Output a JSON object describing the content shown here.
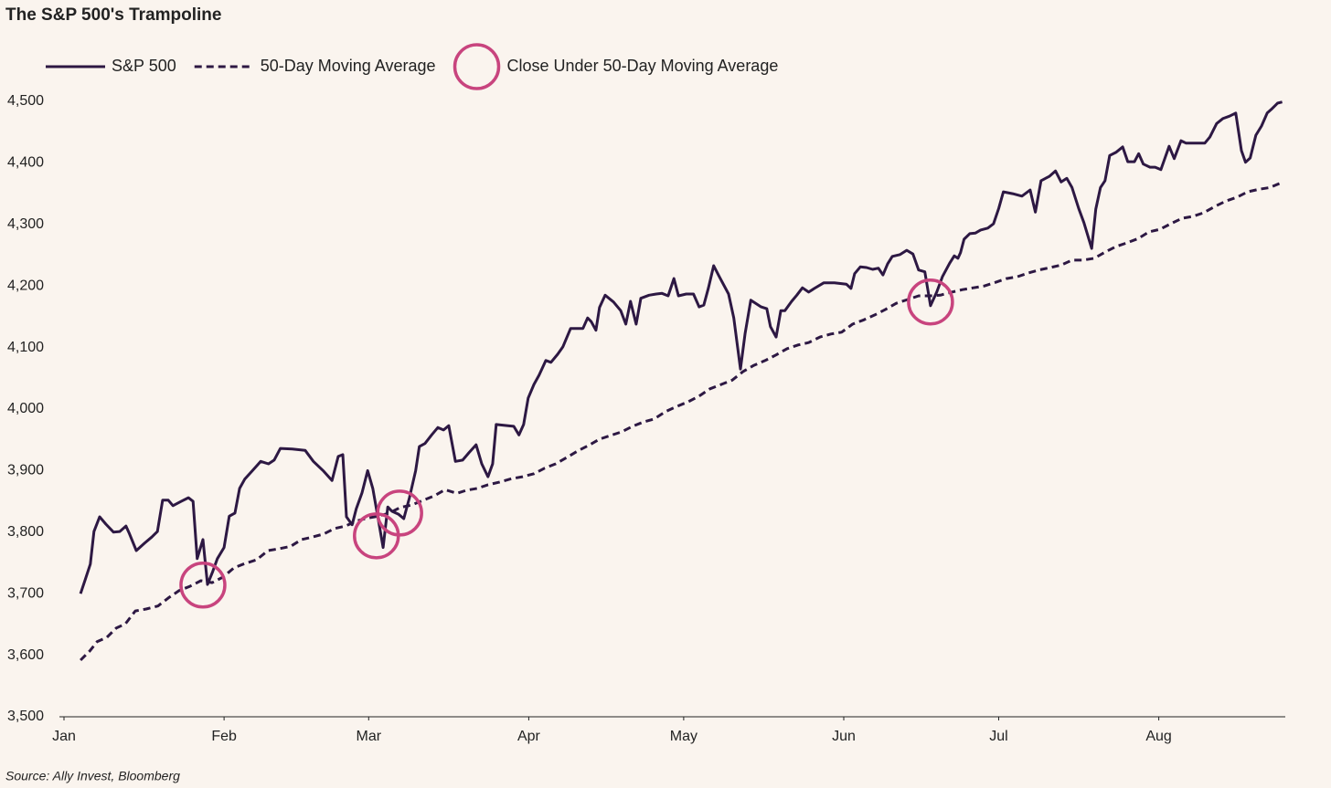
{
  "chart_data": {
    "type": "line",
    "title": "The S&P 500's Trampoline",
    "source": "Source: Ally Invest, Bloomberg",
    "xlim": [
      0,
      236.5
    ],
    "xticks": [
      {
        "value": 0,
        "label": "Jan"
      },
      {
        "value": 31,
        "label": "Feb"
      },
      {
        "value": 59,
        "label": "Mar"
      },
      {
        "value": 90,
        "label": "Apr"
      },
      {
        "value": 120,
        "label": "May"
      },
      {
        "value": 151,
        "label": "Jun"
      },
      {
        "value": 181,
        "label": "Jul"
      },
      {
        "value": 212,
        "label": "Aug"
      }
    ],
    "ylim": [
      3500,
      4500
    ],
    "yticks": [
      {
        "value": 3500,
        "label": "3,500"
      },
      {
        "value": 3600,
        "label": "3,600"
      },
      {
        "value": 3700,
        "label": "3,700"
      },
      {
        "value": 3800,
        "label": "3,800"
      },
      {
        "value": 3900,
        "label": "3,900"
      },
      {
        "value": 4000,
        "label": "4,000"
      },
      {
        "value": 4100,
        "label": "4,100"
      },
      {
        "value": 4200,
        "label": "4,200"
      },
      {
        "value": 4300,
        "label": "4,300"
      },
      {
        "value": 4400,
        "label": "4,400"
      },
      {
        "value": 4500,
        "label": "4,500"
      }
    ],
    "grid": false,
    "series": [
      {
        "name": "S&P 500",
        "color": "#2d1843",
        "style": "solid",
        "x": [
          3.2,
          4.2,
          5.1,
          5.8,
          6.9,
          8.1,
          9.6,
          10.8,
          12.0,
          12.7,
          14.0,
          15.6,
          17.0,
          18.1,
          19.1,
          20.2,
          21.1,
          22.7,
          24.1,
          25.0,
          25.8,
          26.9,
          27.8,
          28.8,
          29.7,
          31.0,
          32.0,
          33.1,
          34.0,
          35.0,
          36.5,
          38.1,
          39.6,
          40.7,
          41.9,
          44.2,
          46.7,
          48.3,
          50.3,
          51.9,
          53.1,
          54.0,
          54.7,
          55.8,
          56.6,
          57.7,
          58.8,
          59.8,
          60.9,
          61.8,
          62.7,
          63.5,
          64.8,
          65.8,
          66.9,
          68.1,
          68.8,
          69.9,
          71.2,
          72.4,
          73.5,
          74.5,
          75.8,
          77.2,
          78.4,
          79.8,
          80.9,
          82.1,
          83.0,
          83.7,
          86.0,
          87.1,
          88.1,
          89.0,
          89.9,
          91.0,
          92.0,
          93.3,
          94.3,
          95.6,
          96.6,
          98.1,
          99.3,
          100.5,
          101.4,
          102.1,
          103.0,
          103.7,
          104.8,
          106.4,
          107.8,
          108.8,
          109.7,
          110.8,
          111.7,
          113.3,
          114.7,
          115.8,
          117.0,
          118.1,
          119.0,
          120.5,
          121.9,
          123.0,
          123.9,
          124.8,
          125.8,
          126.9,
          128.7,
          129.7,
          131.0,
          131.9,
          133.0,
          135.0,
          136.1,
          136.8,
          137.9,
          138.8,
          139.6,
          140.9,
          141.9,
          143.0,
          144.2,
          145.3,
          147.1,
          149.2,
          151.5,
          152.4,
          153.1,
          154.2,
          155.4,
          156.6,
          157.7,
          158.6,
          159.5,
          160.4,
          161.9,
          163.2,
          164.4,
          165.5,
          166.7,
          167.8,
          169.0,
          170.1,
          171.5,
          172.4,
          173.1,
          173.6,
          174.3,
          175.4,
          176.5,
          177.5,
          178.9,
          180.0,
          181.0,
          181.9,
          183.7,
          185.5,
          187.1,
          188.1,
          189.2,
          190.8,
          192.0,
          193.1,
          194.2,
          195.2,
          196.5,
          197.5,
          199.0,
          199.8,
          200.7,
          201.6,
          202.5,
          203.7,
          205.0,
          206.0,
          207.3,
          208.1,
          209.0,
          210.3,
          211.3,
          212.4,
          214.0,
          215.0,
          216.3,
          217.3,
          218.6,
          219.5,
          220.9,
          221.9,
          223.2,
          224.4,
          225.7,
          226.9,
          228.0,
          228.8,
          229.7,
          230.8,
          231.9,
          233.0,
          233.8,
          235.0,
          235.9
        ],
        "values": [
          3700,
          3725,
          3748,
          3801,
          3825,
          3813,
          3800,
          3801,
          3810,
          3797,
          3770,
          3782,
          3792,
          3801,
          3852,
          3852,
          3843,
          3850,
          3856,
          3850,
          3757,
          3788,
          3715,
          3736,
          3757,
          3775,
          3826,
          3831,
          3871,
          3886,
          3900,
          3915,
          3911,
          3917,
          3936,
          3935,
          3933,
          3915,
          3899,
          3884,
          3923,
          3926,
          3825,
          3812,
          3838,
          3864,
          3900,
          3871,
          3819,
          3775,
          3841,
          3834,
          3829,
          3822,
          3856,
          3900,
          3939,
          3944,
          3958,
          3970,
          3966,
          3973,
          3915,
          3917,
          3929,
          3942,
          3911,
          3890,
          3911,
          3975,
          3973,
          3972,
          3958,
          3975,
          4018,
          4040,
          4055,
          4079,
          4076,
          4089,
          4101,
          4131,
          4131,
          4131,
          4148,
          4142,
          4128,
          4165,
          4185,
          4174,
          4160,
          4138,
          4175,
          4138,
          4180,
          4185,
          4187,
          4188,
          4184,
          4212,
          4184,
          4187,
          4187,
          4166,
          4169,
          4197,
          4233,
          4215,
          4187,
          4148,
          4065,
          4123,
          4177,
          4166,
          4163,
          4134,
          4117,
          4160,
          4160,
          4175,
          4185,
          4197,
          4190,
          4196,
          4205,
          4205,
          4203,
          4196,
          4220,
          4231,
          4230,
          4227,
          4229,
          4218,
          4236,
          4248,
          4251,
          4258,
          4252,
          4226,
          4223,
          4168,
          4190,
          4215,
          4237,
          4249,
          4245,
          4254,
          4276,
          4285,
          4286,
          4291,
          4294,
          4301,
          4326,
          4353,
          4350,
          4346,
          4356,
          4320,
          4371,
          4378,
          4387,
          4369,
          4375,
          4360,
          4326,
          4303,
          4261,
          4325,
          4360,
          4371,
          4412,
          4417,
          4426,
          4402,
          4402,
          4415,
          4398,
          4393,
          4393,
          4389,
          4427,
          4407,
          4436,
          4432,
          4432,
          4432,
          4432,
          4442,
          4464,
          4472,
          4476,
          4481,
          4420,
          4401,
          4408,
          4445,
          4460,
          4481,
          4487,
          4497,
          4499
        ]
      },
      {
        "name": "50-Day Moving Average",
        "color": "#2d1843",
        "style": "dashed",
        "x": [
          3.2,
          5.0,
          6.4,
          8.3,
          10.1,
          11.9,
          13.8,
          15.9,
          18.2,
          20.2,
          22.3,
          24.4,
          26.5,
          28.7,
          30.8,
          32.9,
          35.0,
          37.3,
          39.5,
          41.6,
          43.9,
          46.0,
          48.1,
          50.3,
          52.4,
          54.5,
          56.6,
          58.8,
          60.9,
          63.0,
          65.1,
          67.3,
          69.6,
          71.7,
          73.8,
          76.1,
          77.9,
          80.0,
          82.1,
          84.2,
          86.7,
          88.8,
          91.0,
          93.1,
          95.2,
          97.3,
          99.5,
          101.6,
          103.7,
          105.8,
          108.0,
          110.1,
          112.2,
          114.3,
          116.5,
          118.6,
          120.9,
          123.0,
          125.1,
          127.3,
          129.4,
          131.5,
          133.6,
          135.8,
          137.9,
          140.0,
          142.1,
          144.2,
          146.4,
          148.5,
          150.6,
          152.7,
          154.9,
          157.0,
          159.1,
          161.2,
          163.4,
          165.5,
          167.6,
          169.7,
          171.9,
          174.0,
          176.1,
          178.2,
          180.4,
          182.5,
          184.6,
          186.7,
          188.8,
          191.0,
          193.1,
          195.2,
          197.3,
          199.5,
          201.6,
          203.7,
          205.8,
          208.0,
          210.1,
          212.2,
          214.3,
          216.5,
          218.6,
          220.7,
          222.8,
          225.0,
          227.1,
          229.2,
          231.3,
          233.5,
          236.1
        ],
        "values": [
          3592,
          3607,
          3622,
          3629,
          3644,
          3651,
          3672,
          3675,
          3680,
          3693,
          3705,
          3712,
          3721,
          3718,
          3727,
          3742,
          3749,
          3755,
          3770,
          3773,
          3777,
          3788,
          3792,
          3797,
          3806,
          3810,
          3818,
          3823,
          3826,
          3831,
          3840,
          3844,
          3852,
          3859,
          3869,
          3863,
          3868,
          3871,
          3877,
          3881,
          3887,
          3890,
          3895,
          3904,
          3911,
          3921,
          3932,
          3941,
          3951,
          3957,
          3963,
          3972,
          3979,
          3984,
          3996,
          4004,
          4012,
          4021,
          4033,
          4040,
          4047,
          4061,
          4071,
          4079,
          4088,
          4098,
          4104,
          4108,
          4117,
          4122,
          4125,
          4138,
          4145,
          4153,
          4162,
          4172,
          4178,
          4184,
          4184,
          4185,
          4190,
          4194,
          4197,
          4200,
          4206,
          4212,
          4215,
          4221,
          4226,
          4230,
          4234,
          4242,
          4242,
          4245,
          4255,
          4264,
          4270,
          4277,
          4288,
          4292,
          4301,
          4310,
          4313,
          4319,
          4329,
          4338,
          4344,
          4353,
          4357,
          4360,
          4369
        ]
      },
      {
        "name": "Close Under 50-Day Moving Average",
        "color": "#c8447e",
        "style": "circle",
        "x": [
          26.9,
          60.5,
          65.0,
          167.8
        ],
        "values": [
          3714,
          3794,
          3831,
          4174
        ]
      }
    ]
  }
}
